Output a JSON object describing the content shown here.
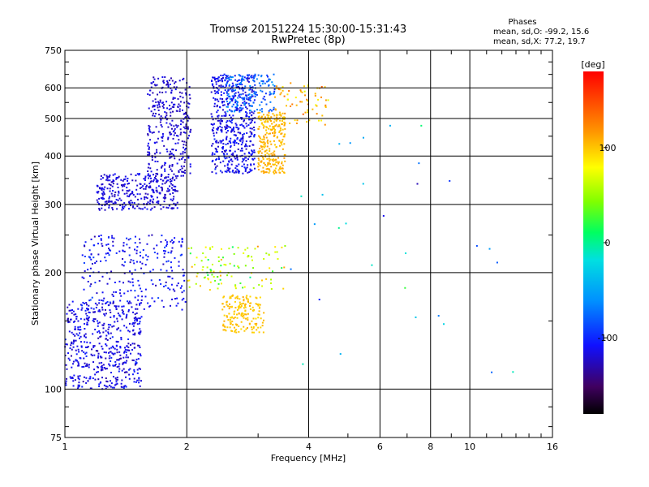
{
  "chart_data": {
    "type": "scatter",
    "title": "Tromsø 20151224 15:30:00-15:31:43",
    "subtitle": "RwPretec (8p)",
    "xlabel": "Frequency [MHz]",
    "ylabel": "Stationary phase Virtual Height [km]",
    "x_scale": "log",
    "y_scale": "log",
    "xlim": [
      1,
      16
    ],
    "ylim": [
      75,
      750
    ],
    "x_ticks": [
      1,
      2,
      4,
      6,
      8,
      10,
      16
    ],
    "y_ticks": [
      75,
      100,
      200,
      300,
      400,
      500,
      600,
      750
    ],
    "grid": true,
    "stats": {
      "heading": "Phases",
      "line_o": "mean, sd,O: -99.2, 15.6",
      "line_x": "mean, sd,X: 77.2, 19.7"
    },
    "colorbar": {
      "label": "[deg]",
      "range": [
        -180,
        180
      ],
      "ticks": [
        100,
        0,
        -100
      ]
    },
    "clusters": [
      {
        "x": [
          1.0,
          1.55
        ],
        "y": [
          100,
          170
        ],
        "phase": -115,
        "spread": 20,
        "count": 520
      },
      {
        "x": [
          1.1,
          2.0
        ],
        "y": [
          160,
          250
        ],
        "phase": -110,
        "spread": 25,
        "count": 260
      },
      {
        "x": [
          1.2,
          1.9
        ],
        "y": [
          290,
          360
        ],
        "phase": -118,
        "spread": 15,
        "count": 320
      },
      {
        "x": [
          1.6,
          2.05
        ],
        "y": [
          350,
          640
        ],
        "phase": -120,
        "spread": 15,
        "count": 330
      },
      {
        "x": [
          2.3,
          2.95
        ],
        "y": [
          360,
          650
        ],
        "phase": -112,
        "spread": 20,
        "count": 520
      },
      {
        "x": [
          2.5,
          3.3
        ],
        "y": [
          520,
          650
        ],
        "phase": -75,
        "spread": 30,
        "count": 160
      },
      {
        "x": [
          3.0,
          3.5
        ],
        "y": [
          360,
          520
        ],
        "phase": 105,
        "spread": 15,
        "count": 260
      },
      {
        "x": [
          3.3,
          4.5
        ],
        "y": [
          480,
          620
        ],
        "phase": 105,
        "spread": 40,
        "count": 70
      },
      {
        "x": [
          2.45,
          3.1
        ],
        "y": [
          140,
          175
        ],
        "phase": 100,
        "spread": 12,
        "count": 170
      },
      {
        "x": [
          2.0,
          3.5
        ],
        "y": [
          180,
          235
        ],
        "phase": 60,
        "spread": 70,
        "count": 110
      },
      {
        "x": [
          3.6,
          14.0
        ],
        "y": [
          110,
          500
        ],
        "phase": -60,
        "spread": 100,
        "count": 30
      }
    ]
  }
}
